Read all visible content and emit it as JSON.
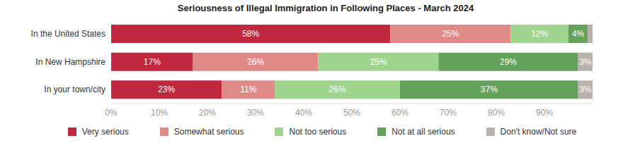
{
  "chart_data": {
    "type": "bar",
    "title": "Seriousness of Illegal Immigration in Following Places - March 2024",
    "orientation": "horizontal",
    "stacked": true,
    "data_labels": true,
    "grid": false,
    "legend": "bottom",
    "categories": [
      "In the United States",
      "In New Hampshire",
      "In your town/city"
    ],
    "xlim": [
      0,
      100
    ],
    "xticks": [
      {
        "value": 0,
        "label": "0%"
      },
      {
        "value": 10,
        "label": "10%"
      },
      {
        "value": 20,
        "label": "20%"
      },
      {
        "value": 30,
        "label": "30%"
      },
      {
        "value": 40,
        "label": "40%"
      },
      {
        "value": 50,
        "label": "50%"
      },
      {
        "value": 60,
        "label": "60%"
      },
      {
        "value": 70,
        "label": "70%"
      },
      {
        "value": 80,
        "label": "80%"
      },
      {
        "value": 90,
        "label": "90%"
      }
    ],
    "series": [
      {
        "name": "Very serious",
        "color": "#c0283f",
        "values": [
          58,
          17,
          23
        ],
        "value_labels": [
          "58%",
          "17%",
          "23%"
        ]
      },
      {
        "name": "Somewhat serious",
        "color": "#e08a87",
        "values": [
          25,
          26,
          11
        ],
        "value_labels": [
          "25%",
          "26%",
          "11%"
        ]
      },
      {
        "name": "Not too serious",
        "color": "#9fd48f",
        "values": [
          12,
          25,
          26
        ],
        "value_labels": [
          "12%",
          "25%",
          "26%"
        ]
      },
      {
        "name": "Not at all serious",
        "color": "#64a15a",
        "values": [
          4,
          29,
          37
        ],
        "value_labels": [
          "4%",
          "29%",
          "37%"
        ]
      },
      {
        "name": "Don't know/Not sure",
        "color": "#b9b1ad",
        "values": [
          1,
          3,
          3
        ],
        "value_labels": [
          null,
          "3%",
          "3%"
        ]
      }
    ]
  }
}
